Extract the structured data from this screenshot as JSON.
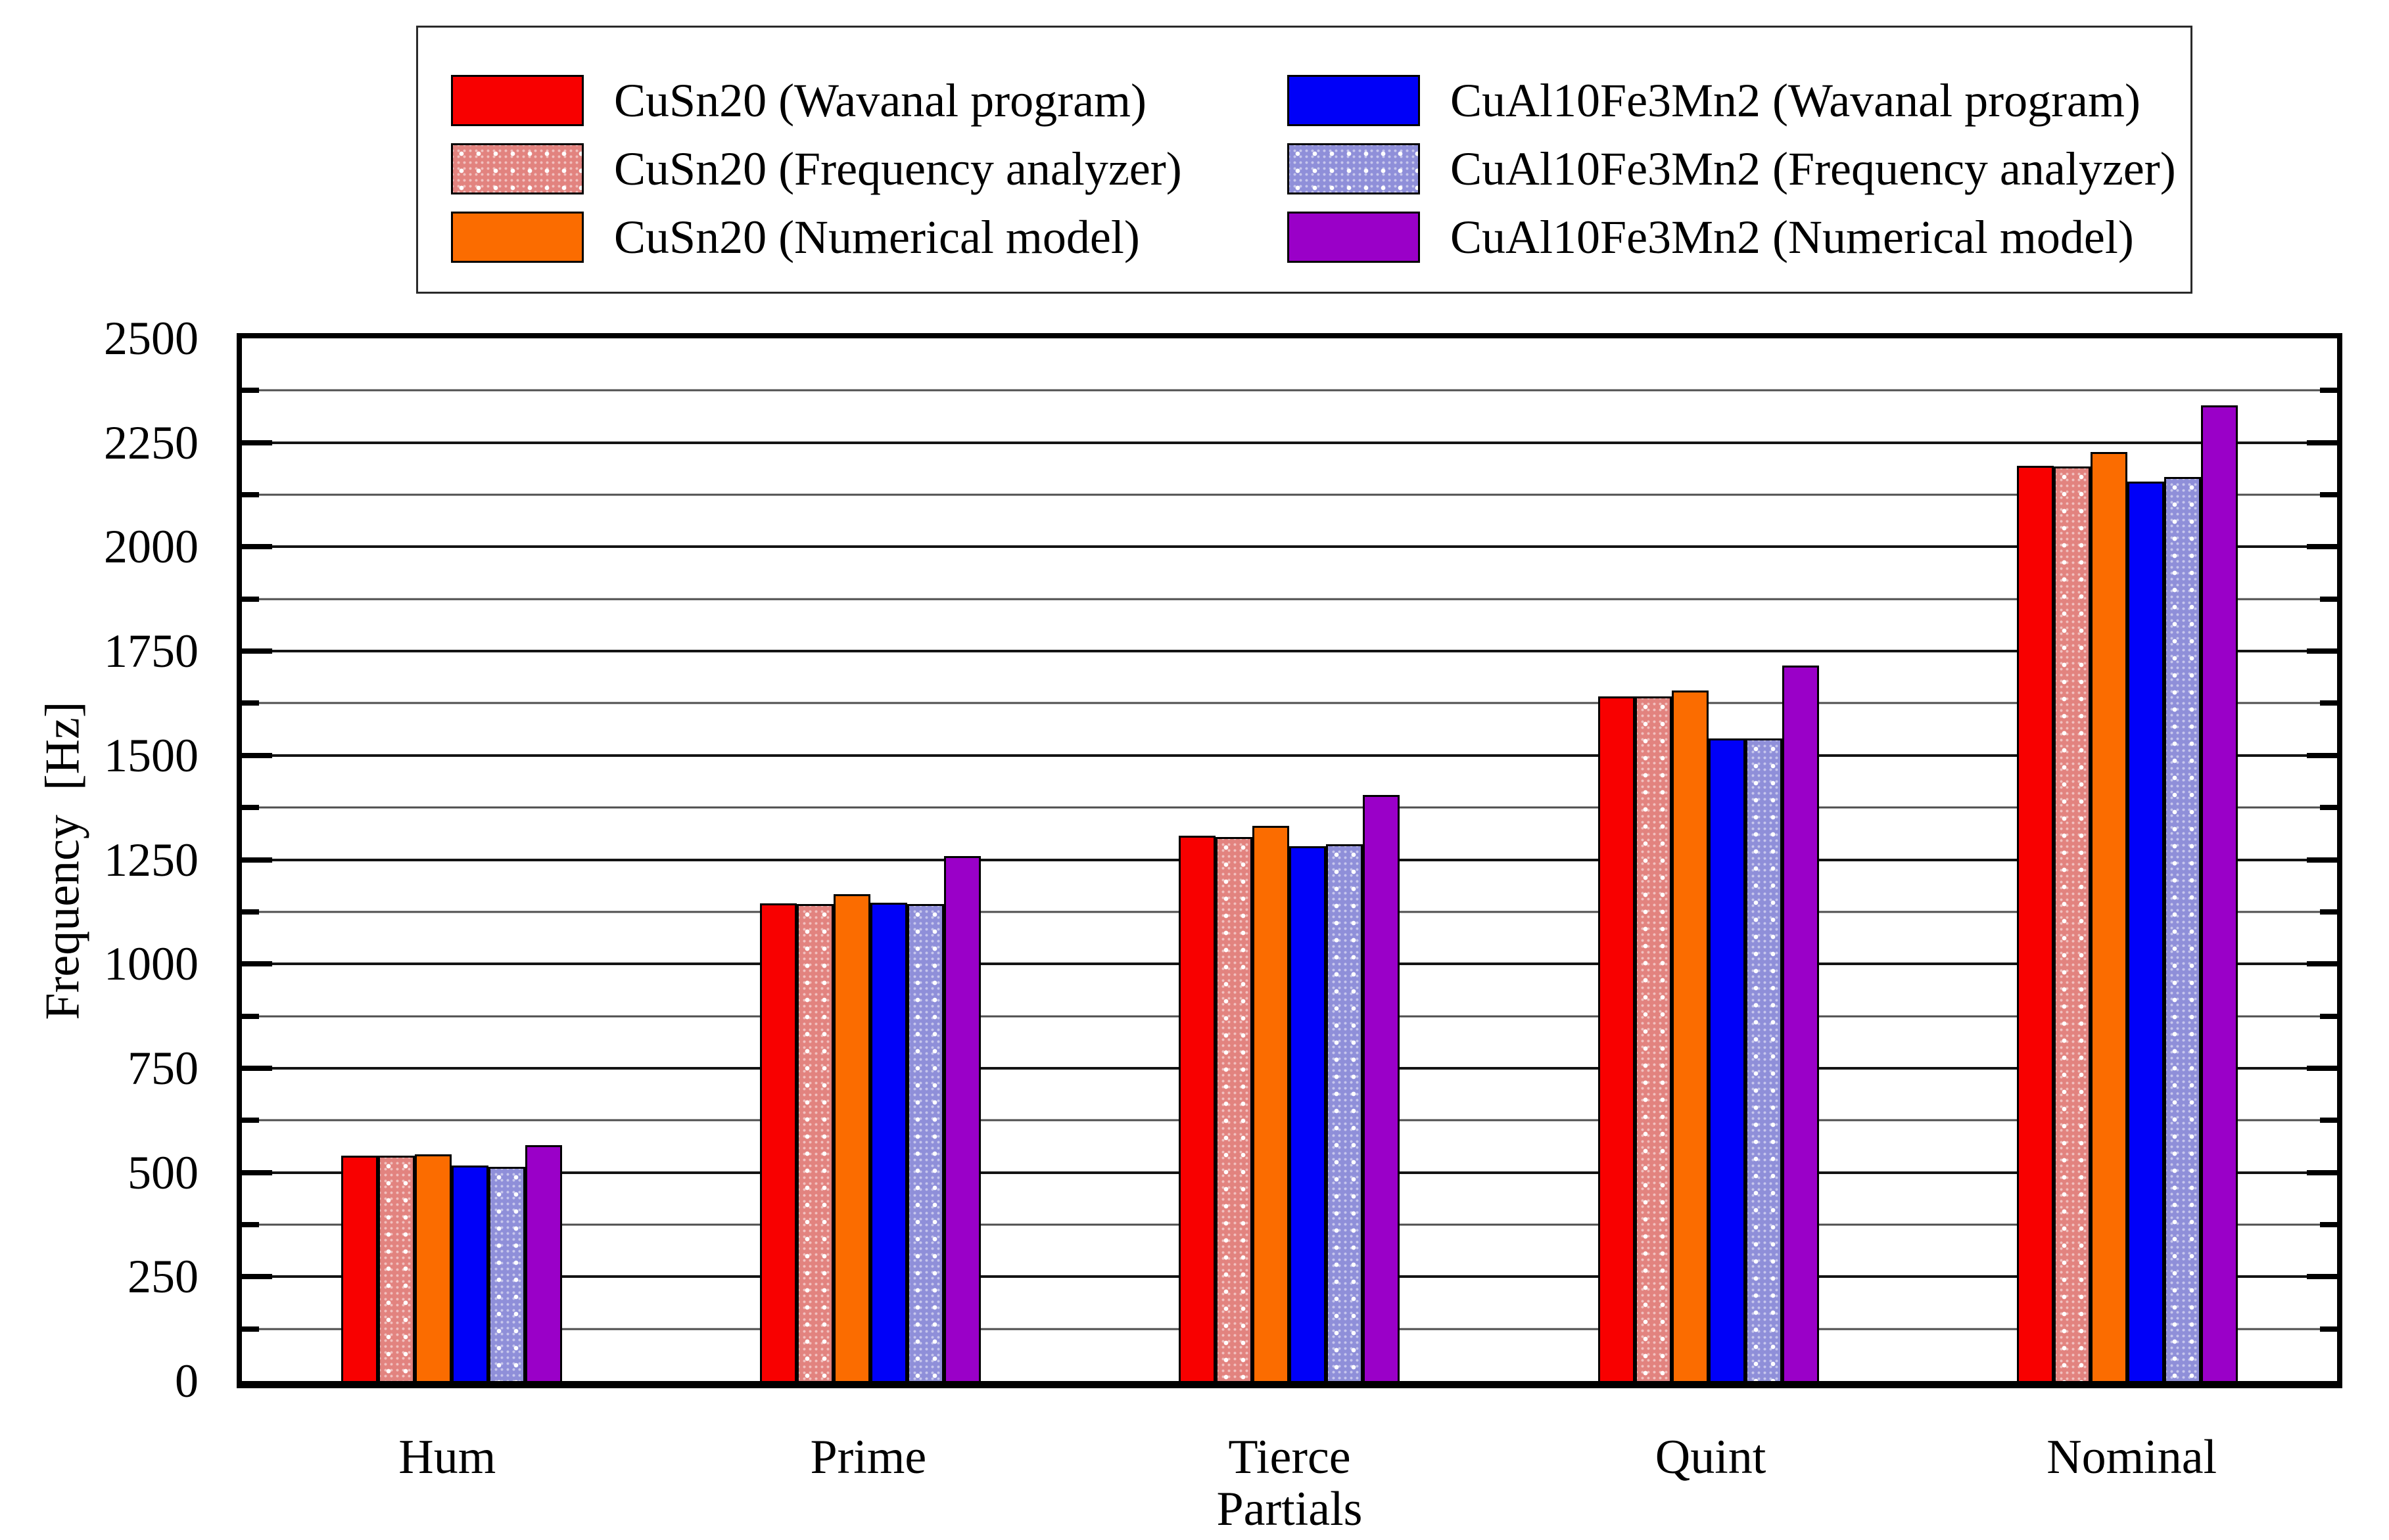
{
  "legend": {
    "items": [
      {
        "label": "CuSn20 (Wavanal program)",
        "fill": "red-solid",
        "color": "#f80000"
      },
      {
        "label": "CuAl10Fe3Mn2 (Wavanal program)",
        "fill": "blue-solid",
        "color": "#0000f8"
      },
      {
        "label": "CuSn20 (Frequency analyzer)",
        "fill": "red-dots",
        "color": "#e2837f"
      },
      {
        "label": "CuAl10Fe3Mn2 (Frequency analyzer)",
        "fill": "blue-dots",
        "color": "#8f8fd9"
      },
      {
        "label": "CuSn20 (Numerical model)",
        "fill": "orange-solid",
        "color": "#fb6c00"
      },
      {
        "label": "CuAl10Fe3Mn2 (Numerical model)",
        "fill": "purple-solid",
        "color": "#9a00c8"
      }
    ]
  },
  "y_axis": {
    "title": "Frequency  [Hz]",
    "min": 0,
    "max": 2500,
    "major_step": 250,
    "minor_step": 125,
    "tick_labels": [
      "0",
      "250",
      "500",
      "750",
      "1000",
      "1250",
      "1500",
      "1750",
      "2000",
      "2250",
      "2500"
    ]
  },
  "x_axis": {
    "title": "Partials",
    "categories": [
      "Hum",
      "Prime",
      "Tierce",
      "Quint",
      "Nominal"
    ]
  },
  "chart_data": {
    "type": "bar",
    "grouped": true,
    "title": "",
    "xlabel": "Partials",
    "ylabel": "Frequency  [Hz]",
    "ylim": [
      0,
      2500
    ],
    "grid": "horizontal, major every 250 Hz and minor every 125 Hz",
    "legend_position": "top, boxed, two columns",
    "categories": [
      "Hum",
      "Prime",
      "Tierce",
      "Quint",
      "Nominal"
    ],
    "series": [
      {
        "name": "CuSn20 (Wavanal program)",
        "fill": "red-solid",
        "color": "#f80000",
        "values": [
          540,
          1146,
          1308,
          1641,
          2195
        ]
      },
      {
        "name": "CuSn20 (Frequency analyzer)",
        "fill": "red-dots",
        "color": "#e2837f",
        "values": [
          540,
          1143,
          1305,
          1642,
          2193
        ]
      },
      {
        "name": "CuSn20 (Numerical model)",
        "fill": "orange-solid",
        "color": "#fb6c00",
        "values": [
          544,
          1167,
          1331,
          1656,
          2228
        ]
      },
      {
        "name": "CuAl10Fe3Mn2 (Wavanal program)",
        "fill": "blue-solid",
        "color": "#0000f8",
        "values": [
          516,
          1147,
          1282,
          1540,
          2156
        ]
      },
      {
        "name": "CuAl10Fe3Mn2 (Frequency analyzer)",
        "fill": "blue-dots",
        "color": "#8f8fd9",
        "values": [
          513,
          1143,
          1287,
          1541,
          2167
        ]
      },
      {
        "name": "CuAl10Fe3Mn2 (Numerical model)",
        "fill": "purple-solid",
        "color": "#9a00c8",
        "values": [
          565,
          1258,
          1405,
          1715,
          2339
        ]
      }
    ]
  }
}
